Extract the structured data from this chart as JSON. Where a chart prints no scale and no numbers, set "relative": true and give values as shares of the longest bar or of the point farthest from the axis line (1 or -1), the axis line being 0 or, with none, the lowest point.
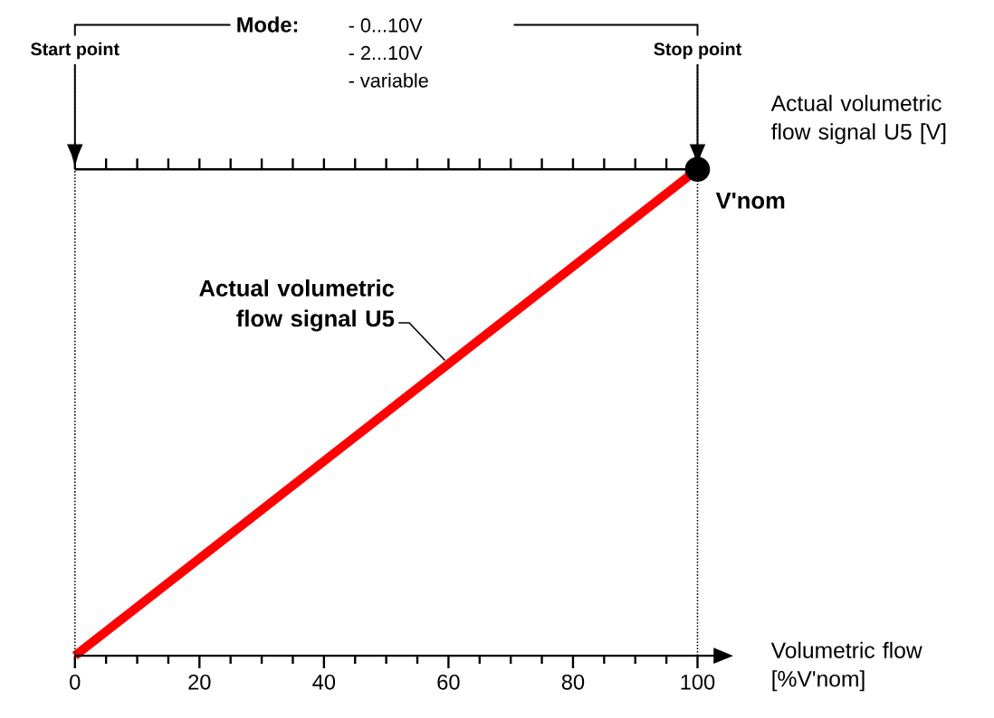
{
  "chart_data": {
    "type": "line",
    "relative": true,
    "tick_labels": "x",
    "xlabel": "Volumetric flow [%V'nom]",
    "ylabel": "Actual volumetric flow signal U5 [V]",
    "x": [
      0,
      100
    ],
    "values": [
      0,
      1
    ],
    "color": "#ff0000",
    "xlim": [
      0,
      100
    ],
    "xticks": [
      0,
      {
        "value": 5,
        "label": null
      },
      {
        "value": 10,
        "label": null
      },
      {
        "value": 15,
        "label": null
      },
      20,
      {
        "value": 25,
        "label": null
      },
      {
        "value": 30,
        "label": null
      },
      {
        "value": 35,
        "label": null
      },
      40,
      {
        "value": 45,
        "label": null
      },
      {
        "value": 50,
        "label": null
      },
      {
        "value": 55,
        "label": null
      },
      60,
      {
        "value": 65,
        "label": null
      },
      {
        "value": 70,
        "label": null
      },
      {
        "value": 75,
        "label": null
      },
      80,
      {
        "value": 85,
        "label": null
      },
      {
        "value": 90,
        "label": null
      },
      {
        "value": 95,
        "label": null
      },
      100
    ],
    "ref_lines": [
      {
        "axis": "x",
        "value": 0,
        "label": "Start point",
        "line_style": "dotted"
      },
      {
        "axis": "x",
        "value": 100,
        "label": "Stop point",
        "line_style": "dotted"
      }
    ],
    "annotations": [
      "Mode:",
      "- 0...10V",
      "- 2...10V",
      "- variable",
      {
        "text": "V'nom",
        "x": 100,
        "y": 1
      },
      {
        "text": "Actual volumetric flow signal U5",
        "x": 60,
        "y": 0.6
      }
    ]
  }
}
